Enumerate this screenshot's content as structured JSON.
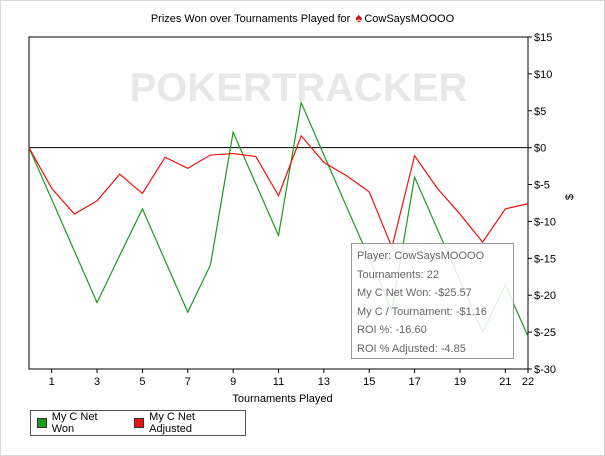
{
  "chart_data": {
    "type": "line",
    "title": "Prizes Won over Tournaments Played for",
    "player": "CowSaysMOOOO",
    "xlabel": "Tournaments Played",
    "ylabel": "$",
    "watermark": "POKERTRACKER",
    "x": [
      0,
      1,
      2,
      3,
      4,
      5,
      6,
      7,
      8,
      9,
      10,
      11,
      12,
      13,
      14,
      15,
      16,
      17,
      18,
      19,
      20,
      21,
      22
    ],
    "xticks": [
      1,
      3,
      5,
      7,
      9,
      11,
      13,
      15,
      17,
      19,
      21,
      22
    ],
    "yticks": [
      15,
      10,
      5,
      0,
      -5,
      -10,
      -15,
      -20,
      -25,
      -30
    ],
    "ytick_labels": [
      "$15",
      "$10",
      "$5",
      "$0",
      "$-5",
      "$-10",
      "$-15",
      "$-20",
      "$-25",
      "$-30"
    ],
    "xlim": [
      0,
      22
    ],
    "ylim": [
      -30,
      15
    ],
    "series": [
      {
        "name": "My C Net Won",
        "color": "#1a9a1a",
        "values": [
          0,
          -7,
          -14,
          -21,
          -14.6,
          -8.3,
          -15.3,
          -22.3,
          -15.9,
          2.1,
          -4.9,
          -11.9,
          6.1,
          -1,
          -8,
          -15,
          -22,
          -4,
          -11,
          -18,
          -25,
          -18.6,
          -25.6
        ]
      },
      {
        "name": "My C Net Adjusted",
        "color": "#ee1111",
        "values": [
          0,
          -5.5,
          -9,
          -7.2,
          -3.6,
          -6.2,
          -1.3,
          -2.8,
          -1,
          -0.8,
          -1.2,
          -6.5,
          1.6,
          -2,
          -3.8,
          -6,
          -13.5,
          -1.1,
          -5.5,
          -9,
          -12.8,
          -8.3,
          -7.6
        ]
      }
    ],
    "grid": false,
    "legend_position": "bottom-left"
  },
  "tooltip": {
    "player": "Player: CowSaysMOOOO",
    "tournaments": "Tournaments: 22",
    "net_won": "My C Net Won: -$25.57",
    "per_tournament": "My C / Tournament: -$1.16",
    "roi": "ROI %: -16.60",
    "roi_adjusted": "ROI % Adjusted: -4.85"
  }
}
